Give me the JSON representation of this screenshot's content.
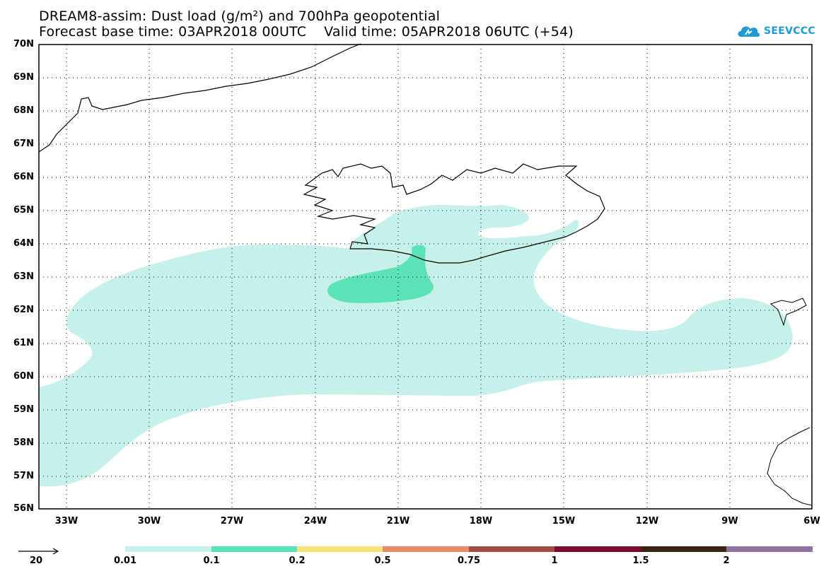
{
  "title": {
    "line1": "DREAM8-assim: Dust load (g/m²) and 700hPa geopotential",
    "line2": "Forecast base time: 03APR2018 00UTC    Valid time: 05APR2018 06UTC (+54)"
  },
  "logo": {
    "text": "SEEVCCC",
    "icon": "cloud-icon",
    "color": "#1e9ad6"
  },
  "map": {
    "lat_labels": [
      "70N",
      "69N",
      "68N",
      "67N",
      "66N",
      "65N",
      "64N",
      "63N",
      "62N",
      "61N",
      "60N",
      "59N",
      "58N",
      "57N",
      "56N"
    ],
    "lon_labels": [
      "33W",
      "30W",
      "27W",
      "24W",
      "21W",
      "18W",
      "15W",
      "12W",
      "9W",
      "6W"
    ],
    "lat_range": [
      56,
      70
    ],
    "lon_range": [
      -34.5,
      -6
    ],
    "gridlines": "dotted"
  },
  "colorbar": {
    "levels": [
      "0.01",
      "0.1",
      "0.2",
      "0.5",
      "0.75",
      "1",
      "1.5",
      "2"
    ],
    "colors": [
      "#c6f0ea",
      "#5ce1b9",
      "#f6e57c",
      "#e98c68",
      "#a24d45",
      "#7b0c2e",
      "#3a2613",
      "#92719c"
    ]
  },
  "vector_key": {
    "label": "20"
  }
}
